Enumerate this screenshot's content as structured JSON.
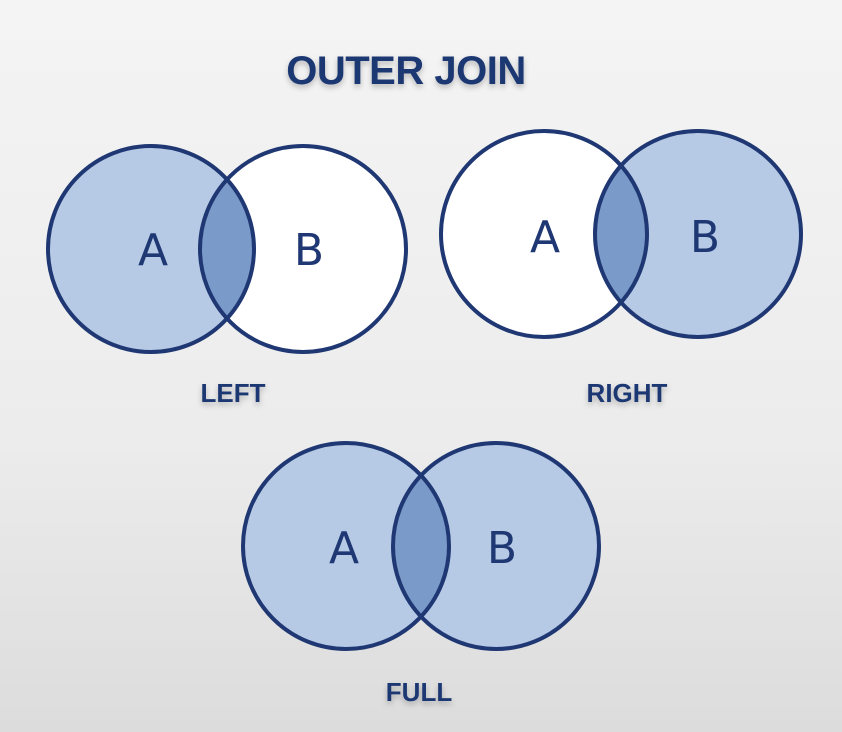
{
  "title": "OUTER JOIN",
  "colors": {
    "stroke": "#1f3873",
    "fill_light": "#b6cae6",
    "fill_overlap": "#7a9ac9",
    "empty": "#ffffff"
  },
  "diagrams": [
    {
      "id": "left",
      "caption": "LEFT",
      "set_a_label": "A",
      "set_b_label": "B",
      "shaded": {
        "a_only": true,
        "overlap": true,
        "b_only": false
      }
    },
    {
      "id": "right",
      "caption": "RIGHT",
      "set_a_label": "A",
      "set_b_label": "B",
      "shaded": {
        "a_only": false,
        "overlap": true,
        "b_only": true
      }
    },
    {
      "id": "full",
      "caption": "FULL",
      "set_a_label": "A",
      "set_b_label": "B",
      "shaded": {
        "a_only": true,
        "overlap": true,
        "b_only": true
      }
    }
  ]
}
